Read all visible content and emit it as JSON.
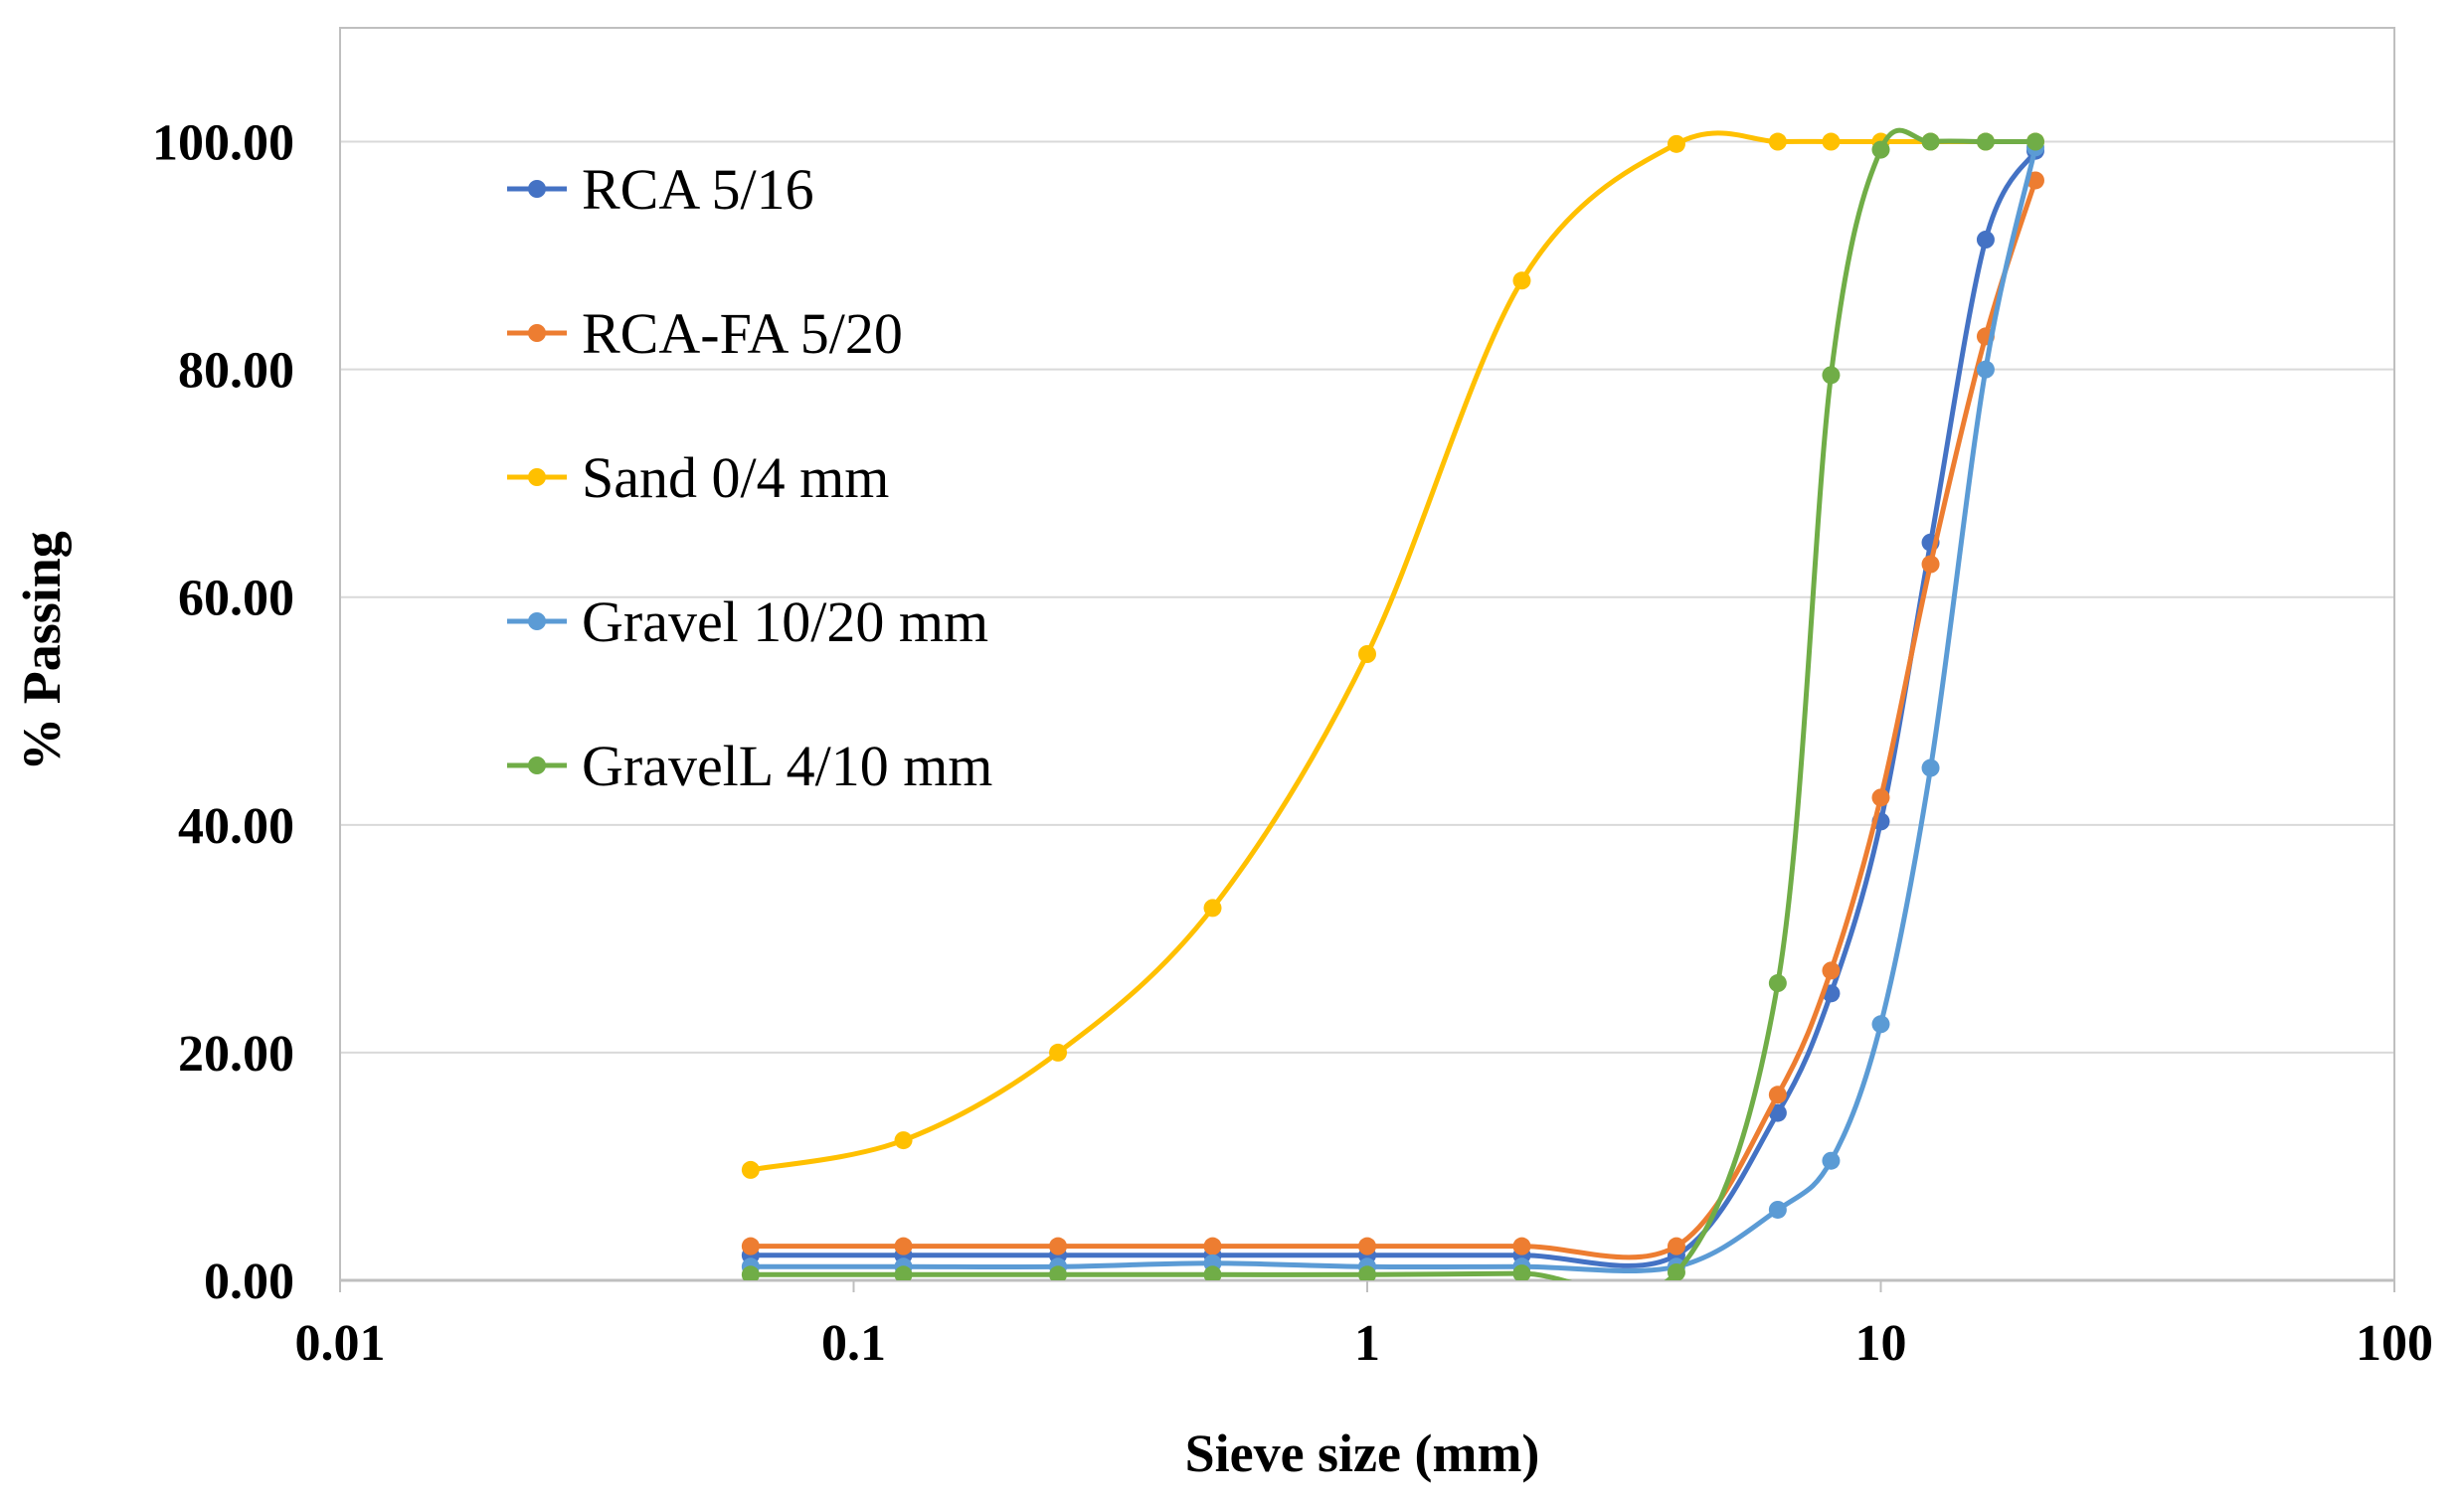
{
  "chart_data": {
    "type": "line",
    "title": "",
    "xlabel": "Sieve size (mm)",
    "ylabel": "% Passing",
    "xscale": "log",
    "xlim": [
      0.01,
      100
    ],
    "ylim": [
      0,
      110
    ],
    "x_ticks": [
      0.01,
      0.1,
      1,
      10,
      100
    ],
    "x_tick_labels": [
      "0.01",
      "0.1",
      "1",
      "10",
      "100"
    ],
    "y_ticks": [
      0,
      20,
      40,
      60,
      80,
      100
    ],
    "y_tick_labels": [
      "0.00",
      "20.00",
      "40.00",
      "60.00",
      "80.00",
      "100.00"
    ],
    "grid": "horizontal",
    "legend_position": "top-left",
    "series": [
      {
        "name": "RCA 5/16",
        "color": "#4472C4",
        "x": [
          0.063,
          0.125,
          0.25,
          0.5,
          1,
          2,
          4,
          6.3,
          8,
          10,
          12.5,
          16,
          20
        ],
        "y": [
          2.2,
          2.2,
          2.2,
          2.2,
          2.2,
          2.2,
          2.2,
          14.7,
          25.2,
          40.3,
          64.8,
          91.4,
          99.2
        ]
      },
      {
        "name": "RCA-FA 5/20",
        "color": "#ED7D31",
        "x": [
          0.063,
          0.125,
          0.25,
          0.5,
          1,
          2,
          4,
          6.3,
          8,
          10,
          12.5,
          16,
          20
        ],
        "y": [
          3.0,
          3.0,
          3.0,
          3.0,
          3.0,
          3.0,
          3.0,
          16.3,
          27.2,
          42.4,
          62.9,
          82.9,
          96.6
        ]
      },
      {
        "name": "Sand 0/4 mm",
        "color": "#FFC000",
        "x": [
          0.063,
          0.125,
          0.25,
          0.5,
          1,
          2,
          4,
          6.3,
          8,
          10,
          12.5,
          16,
          20
        ],
        "y": [
          9.7,
          12.3,
          20.0,
          32.7,
          55.0,
          87.8,
          99.8,
          100,
          100,
          100,
          100,
          100,
          100
        ]
      },
      {
        "name": "Gravel 10/20 mm",
        "color": "#5B9BD5",
        "x": [
          0.063,
          0.125,
          0.25,
          0.5,
          1,
          2,
          4,
          6.3,
          8,
          10,
          12.5,
          16,
          20
        ],
        "y": [
          1.2,
          1.2,
          1.2,
          1.5,
          1.2,
          1.2,
          1.2,
          6.2,
          10.5,
          22.5,
          45.0,
          80.0,
          99.5
        ]
      },
      {
        "name": "GravelL 4/10 mm",
        "color": "#70AD47",
        "x": [
          0.063,
          0.125,
          0.25,
          0.5,
          1,
          2,
          4,
          6.3,
          8,
          10,
          12.5,
          16,
          20
        ],
        "y": [
          0.5,
          0.5,
          0.5,
          0.5,
          0.5,
          0.6,
          0.7,
          26.1,
          79.5,
          99.3,
          100,
          100,
          100
        ]
      }
    ]
  }
}
